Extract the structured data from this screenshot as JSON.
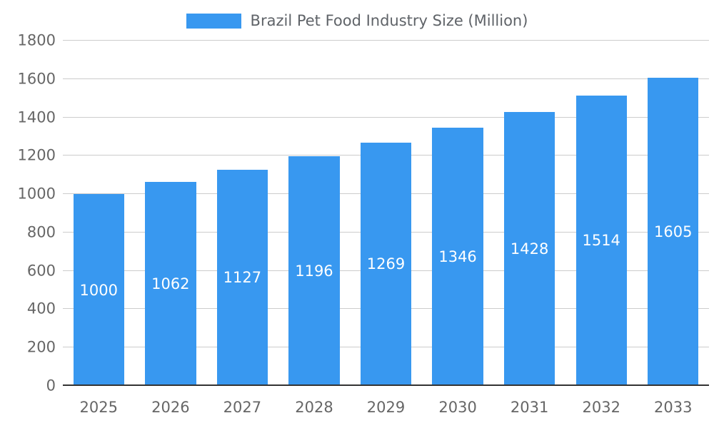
{
  "chart_data": {
    "type": "bar",
    "title": "Brazil Pet Food Industry Size (Million)",
    "categories": [
      "2025",
      "2026",
      "2027",
      "2028",
      "2029",
      "2030",
      "2031",
      "2032",
      "2033"
    ],
    "values": [
      1000,
      1062,
      1127,
      1196,
      1269,
      1346,
      1428,
      1514,
      1605
    ],
    "xlabel": "",
    "ylabel": "",
    "ylim": [
      0,
      1800
    ],
    "ytick_step": 200,
    "ytick_labels": [
      "0",
      "200",
      "400",
      "600",
      "800",
      "1000",
      "1200",
      "1400",
      "1600",
      "1800"
    ],
    "grid": true,
    "legend_position": "top",
    "value_labels_inside_bars": true,
    "colors": {
      "bar": "#3898F0",
      "grid": "#cccccc",
      "baseline": "#333333",
      "tick_text": "#666666",
      "legend_text": "#5f6368",
      "value_label": "#ffffff",
      "background": "#ffffff"
    }
  }
}
